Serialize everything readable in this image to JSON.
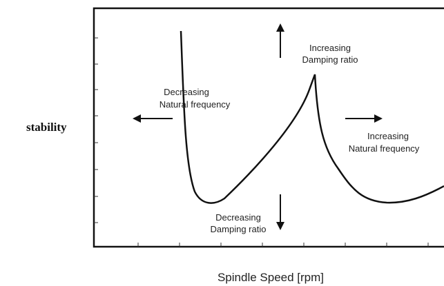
{
  "y_axis_label": "stability",
  "x_axis_label": "Spindle Speed [rpm]",
  "annotations": [
    {
      "lines": [
        "Increasing",
        "Damping ratio"
      ]
    },
    {
      "lines": [
        "Decreasing",
        "Natural frequency"
      ]
    },
    {
      "lines": [
        "Increasing",
        "Natural frequency"
      ]
    },
    {
      "lines": [
        "Decreasing",
        "Damping ratio"
      ]
    }
  ]
}
